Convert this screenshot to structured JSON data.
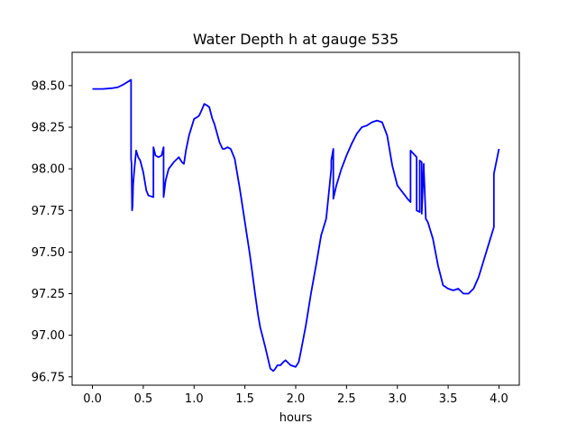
{
  "chart_data": {
    "type": "line",
    "title": "Water Depth h at gauge 535",
    "xlabel": "hours",
    "ylabel": "",
    "xlim": [
      -0.2,
      4.2
    ],
    "ylim": [
      96.7,
      98.7
    ],
    "xticks": [
      0.0,
      0.5,
      1.0,
      1.5,
      2.0,
      2.5,
      3.0,
      3.5,
      4.0
    ],
    "xtick_labels": [
      "0.0",
      "0.5",
      "1.0",
      "1.5",
      "2.0",
      "2.5",
      "3.0",
      "3.5",
      "4.0"
    ],
    "yticks": [
      96.75,
      97.0,
      97.25,
      97.5,
      97.75,
      98.0,
      98.25,
      98.5
    ],
    "ytick_labels": [
      "96.75",
      "97.00",
      "97.25",
      "97.50",
      "97.75",
      "98.00",
      "98.25",
      "98.50"
    ],
    "grid": false,
    "series": [
      {
        "color": "#0000ff",
        "x": [
          0.0,
          0.1,
          0.2,
          0.25,
          0.3,
          0.38,
          0.38,
          0.385,
          0.39,
          0.395,
          0.4,
          0.41,
          0.43,
          0.45,
          0.47,
          0.5,
          0.53,
          0.55,
          0.6,
          0.6,
          0.62,
          0.65,
          0.68,
          0.7,
          0.7,
          0.72,
          0.75,
          0.8,
          0.85,
          0.88,
          0.9,
          0.92,
          0.95,
          1.0,
          1.03,
          1.05,
          1.08,
          1.1,
          1.13,
          1.15,
          1.18,
          1.2,
          1.25,
          1.28,
          1.3,
          1.33,
          1.36,
          1.4,
          1.45,
          1.5,
          1.55,
          1.6,
          1.63,
          1.65,
          1.7,
          1.75,
          1.78,
          1.8,
          1.82,
          1.85,
          1.88,
          1.9,
          1.95,
          2.0,
          2.03,
          2.05,
          2.1,
          2.15,
          2.2,
          2.25,
          2.3,
          2.35,
          2.35,
          2.37,
          2.37,
          2.4,
          2.45,
          2.5,
          2.55,
          2.6,
          2.65,
          2.7,
          2.75,
          2.8,
          2.85,
          2.9,
          2.95,
          3.0,
          3.05,
          3.1,
          3.13,
          3.13,
          3.16,
          3.19,
          3.19,
          3.22,
          3.22,
          3.24,
          3.24,
          3.26,
          3.26,
          3.28,
          3.3,
          3.35,
          3.4,
          3.45,
          3.5,
          3.55,
          3.6,
          3.65,
          3.7,
          3.75,
          3.8,
          3.85,
          3.9,
          3.95,
          3.95,
          4.0
        ],
        "y": [
          98.48,
          98.48,
          98.485,
          98.49,
          98.505,
          98.535,
          98.06,
          98.03,
          97.75,
          97.78,
          97.9,
          97.98,
          98.11,
          98.07,
          98.05,
          97.98,
          97.87,
          97.84,
          97.83,
          98.13,
          98.08,
          98.07,
          98.08,
          98.13,
          97.83,
          97.93,
          98.0,
          98.04,
          98.07,
          98.04,
          98.03,
          98.11,
          98.2,
          98.3,
          98.31,
          98.32,
          98.36,
          98.39,
          98.38,
          98.37,
          98.3,
          98.27,
          98.16,
          98.12,
          98.12,
          98.13,
          98.12,
          98.06,
          97.88,
          97.68,
          97.48,
          97.25,
          97.12,
          97.05,
          96.93,
          96.8,
          96.785,
          96.8,
          96.82,
          96.82,
          96.84,
          96.85,
          96.82,
          96.81,
          96.84,
          96.9,
          97.06,
          97.25,
          97.42,
          97.6,
          97.7,
          98.0,
          98.05,
          98.12,
          97.82,
          97.9,
          98.0,
          98.08,
          98.15,
          98.21,
          98.25,
          98.26,
          98.28,
          98.29,
          98.28,
          98.2,
          98.02,
          97.9,
          97.86,
          97.82,
          97.8,
          98.11,
          98.09,
          98.07,
          97.75,
          97.74,
          98.05,
          98.04,
          97.73,
          98.03,
          98.01,
          97.7,
          97.68,
          97.58,
          97.42,
          97.3,
          97.28,
          97.27,
          97.28,
          97.25,
          97.25,
          97.28,
          97.35,
          97.45,
          97.55,
          97.65,
          97.97,
          98.12
        ]
      }
    ]
  }
}
